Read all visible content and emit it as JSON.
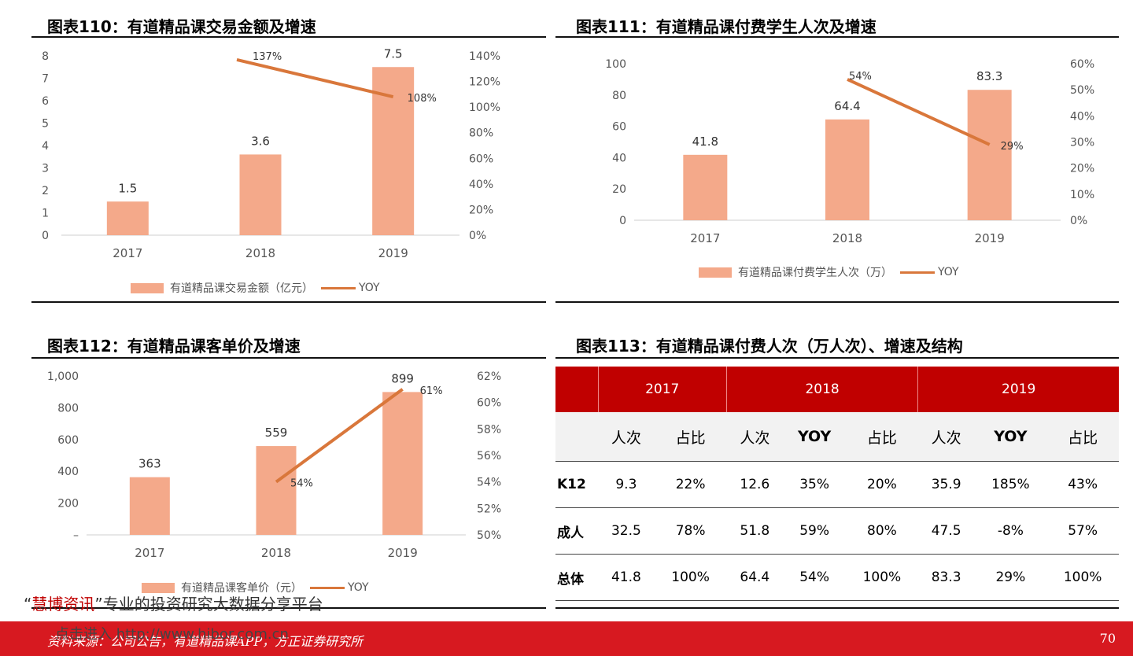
{
  "charts": {
    "c110": {
      "title": "图表110：有道精品课交易金额及增速",
      "chart_data": {
        "type": "bar",
        "categories": [
          "2017",
          "2018",
          "2019"
        ],
        "series": [
          {
            "name": "有道精品课交易金额（亿元）",
            "type": "bar",
            "values": [
              1.5,
              3.6,
              7.5
            ],
            "labels": [
              "1.5",
              "3.6",
              "7.5"
            ]
          },
          {
            "name": "YOY",
            "type": "line",
            "axis": "right",
            "values": [
              null,
              137,
              108
            ],
            "labels": [
              "",
              "137%",
              "108%"
            ]
          }
        ],
        "y_ticks": [
          "0",
          "1",
          "2",
          "3",
          "4",
          "5",
          "6",
          "7",
          "8"
        ],
        "ylim": [
          0,
          8
        ],
        "y2_ticks": [
          "0%",
          "20%",
          "40%",
          "60%",
          "80%",
          "100%",
          "120%",
          "140%"
        ],
        "y2lim": [
          0,
          140
        ],
        "grid": false,
        "legend": "bottom"
      }
    },
    "c111": {
      "title": "图表111：有道精品课付费学生人次及增速",
      "chart_data": {
        "type": "bar",
        "categories": [
          "2017",
          "2018",
          "2019"
        ],
        "series": [
          {
            "name": "有道精品课付费学生人次（万）",
            "type": "bar",
            "values": [
              41.8,
              64.4,
              83.3
            ],
            "labels": [
              "41.8",
              "64.4",
              "83.3"
            ]
          },
          {
            "name": "YOY",
            "type": "line",
            "axis": "right",
            "values": [
              null,
              54,
              29
            ],
            "labels": [
              "",
              "54%",
              "29%"
            ]
          }
        ],
        "y_ticks": [
          "0",
          "20",
          "40",
          "60",
          "80",
          "100"
        ],
        "ylim": [
          0,
          100
        ],
        "y2_ticks": [
          "0%",
          "10%",
          "20%",
          "30%",
          "40%",
          "50%",
          "60%"
        ],
        "y2lim": [
          0,
          60
        ],
        "grid": false,
        "legend": "bottom"
      }
    },
    "c112": {
      "title": "图表112：有道精品课客单价及增速",
      "chart_data": {
        "type": "bar",
        "categories": [
          "2017",
          "2018",
          "2019"
        ],
        "series": [
          {
            "name": "有道精品课客单价（元）",
            "type": "bar",
            "values": [
              363,
              559,
              899
            ],
            "labels": [
              "363",
              "559",
              "899"
            ]
          },
          {
            "name": "YOY",
            "type": "line",
            "axis": "right",
            "values": [
              null,
              54,
              61
            ],
            "labels": [
              "",
              "54%",
              "61%"
            ]
          }
        ],
        "y_ticks": [
          "–",
          "200",
          "400",
          "600",
          "800",
          "1,000"
        ],
        "ylim": [
          0,
          1000
        ],
        "y2_ticks": [
          "50%",
          "52%",
          "54%",
          "56%",
          "58%",
          "60%",
          "62%"
        ],
        "y2lim": [
          50,
          62
        ],
        "grid": false,
        "legend": "bottom"
      }
    }
  },
  "table113": {
    "title": "图表113：有道精品课付费人次（万人次）、增速及结构",
    "years": [
      "2017",
      "2018",
      "2019"
    ],
    "sub_headers": [
      "人次",
      "占比",
      "人次",
      "YOY",
      "占比",
      "人次",
      "YOY",
      "占比"
    ],
    "rows": [
      {
        "label": "K12",
        "cells": [
          "9.3",
          "22%",
          "12.6",
          "35%",
          "20%",
          "35.9",
          "185%",
          "43%"
        ]
      },
      {
        "label": "成人",
        "cells": [
          "32.5",
          "78%",
          "51.8",
          "59%",
          "80%",
          "47.5",
          "-8%",
          "57%"
        ]
      },
      {
        "label": "总体",
        "cells": [
          "41.8",
          "100%",
          "64.4",
          "54%",
          "100%",
          "83.3",
          "29%",
          "100%"
        ]
      }
    ]
  },
  "watermark": {
    "open_quote": "“",
    "brand": "慧博资讯",
    "close_quote": "”",
    "slogan": "专业的投资研究大数据分享平台",
    "link_line": "点击进入 http://www.hibor.com.cn"
  },
  "footer": {
    "source": "资料来源：公司公告，有道精品课APP，方正证券研究所",
    "page_number": "70"
  },
  "colors": {
    "bar": "#F4A98A",
    "line": "#D9773B",
    "header_red": "#C00000",
    "footer_red": "#D71920"
  }
}
